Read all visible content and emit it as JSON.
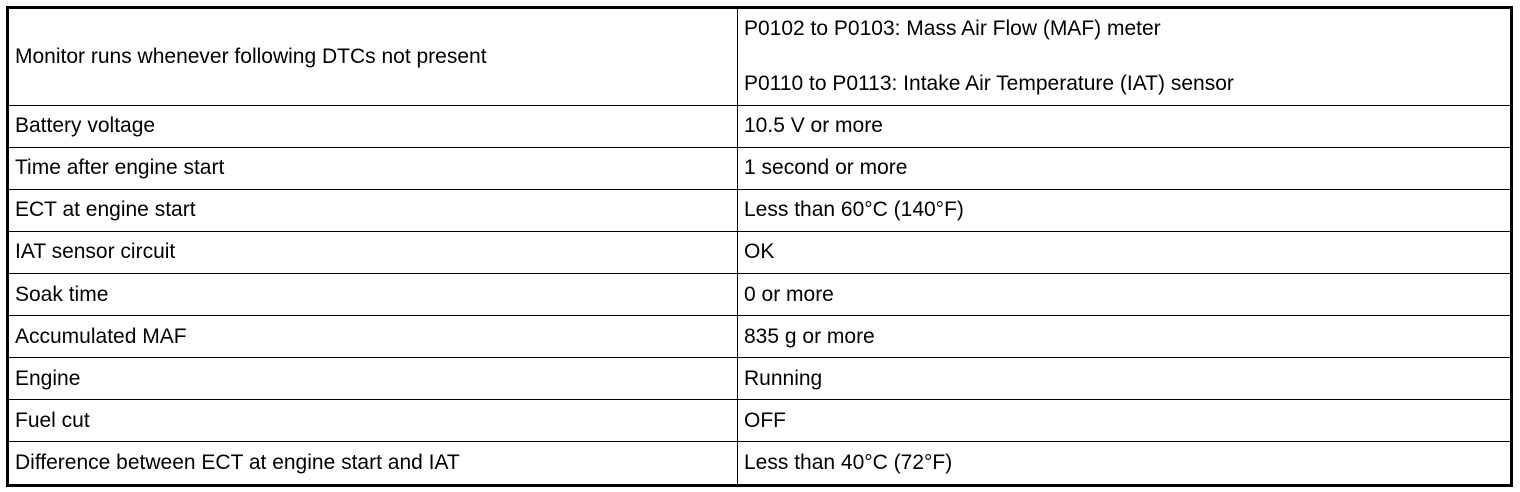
{
  "table": {
    "rows": [
      [
        "Monitor runs whenever following DTCs not present",
        [
          "P0102 to P0103: Mass Air Flow (MAF) meter",
          "P0110 to P0113: Intake Air Temperature (IAT) sensor"
        ]
      ],
      [
        "Battery voltage",
        "10.5 V or more"
      ],
      [
        "Time after engine start",
        "1 second or more"
      ],
      [
        "ECT at engine start",
        "Less than 60°C (140°F)"
      ],
      [
        "IAT sensor circuit",
        "OK"
      ],
      [
        "Soak time",
        "0 or more"
      ],
      [
        "Accumulated MAF",
        "835 g or more"
      ],
      [
        "Engine",
        "Running"
      ],
      [
        "Fuel cut",
        "OFF"
      ],
      [
        "Difference between ECT at engine start and IAT",
        "Less than 40°C (72°F)"
      ]
    ]
  }
}
